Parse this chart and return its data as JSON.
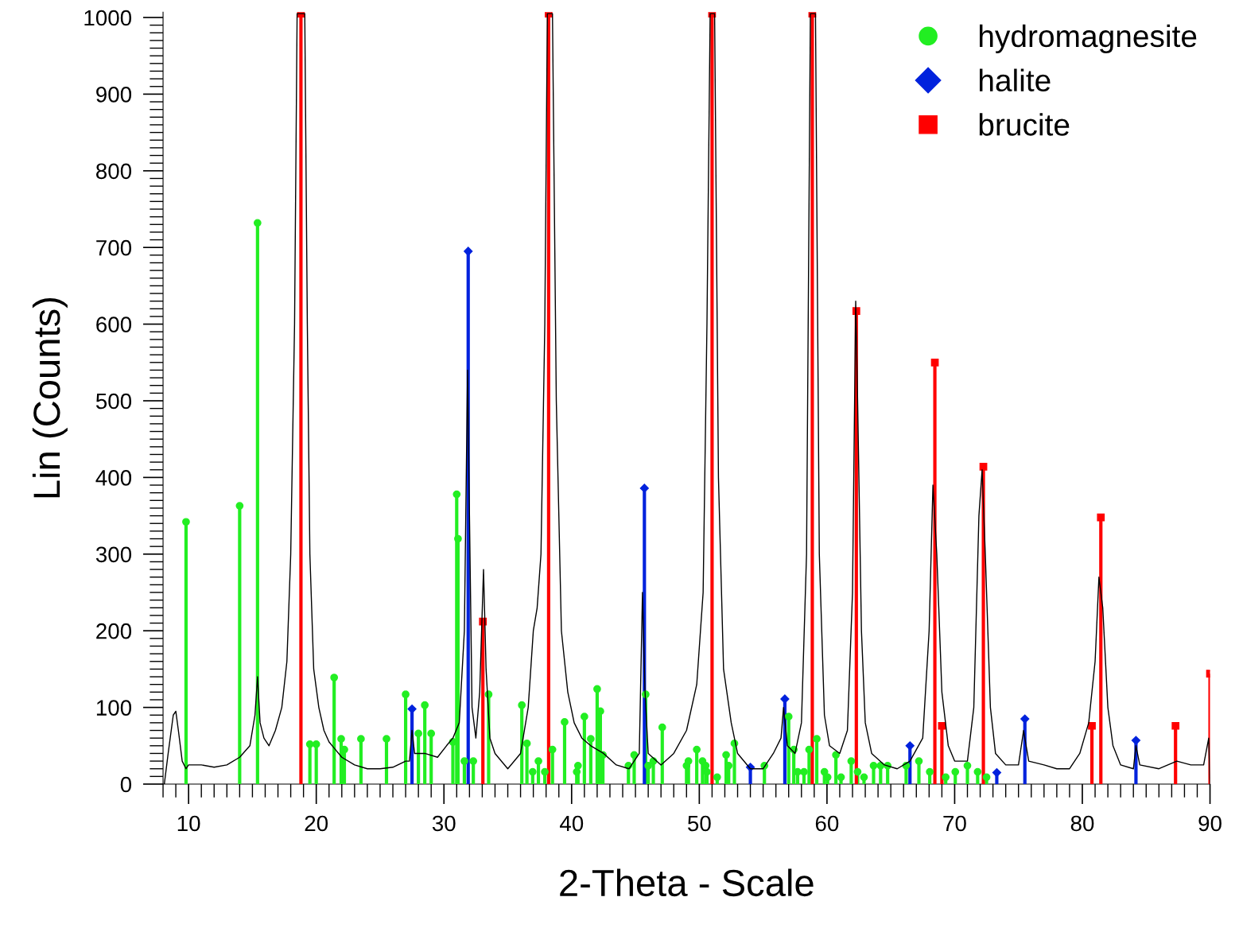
{
  "chart_data": {
    "type": "line",
    "xlabel": "2-Theta - Scale",
    "ylabel": "Lin (Counts)",
    "xlim": [
      8,
      90
    ],
    "xticks": [
      10,
      20,
      30,
      40,
      50,
      60,
      70,
      80,
      90
    ],
    "ylim": [
      0,
      1007
    ],
    "yticks": [
      0,
      100,
      200,
      300,
      400,
      500,
      600,
      700,
      800,
      900,
      1000
    ],
    "grid": false,
    "legend": "top right",
    "series": [
      {
        "color": "#000000",
        "marker": "none",
        "x": [
          8.1,
          8.4,
          8.8,
          9.0,
          9.2,
          9.5,
          9.8,
          10,
          11,
          12,
          13,
          14,
          14.8,
          15.2,
          15.4,
          15.6,
          15.9,
          16.3,
          16.8,
          17.3,
          17.7,
          18.0,
          18.3,
          18.5,
          19.1,
          19.3,
          19.5,
          19.8,
          20.2,
          20.6,
          21,
          21.5,
          22,
          23,
          24,
          25,
          26,
          27,
          27.3,
          27.5,
          27.7,
          28.5,
          29.5,
          30.2,
          30.7,
          31.2,
          31.6,
          31.85,
          32.0,
          32.2,
          32.5,
          32.8,
          33.1,
          33.3,
          33.6,
          34,
          35,
          36,
          36.6,
          37.0,
          37.3,
          37.6,
          37.9,
          38.1,
          38.5,
          38.8,
          39.2,
          39.7,
          40.2,
          40.8,
          41.5,
          42.5,
          43.5,
          44.5,
          45.3,
          45.55,
          45.75,
          46,
          47,
          48,
          49,
          49.8,
          50.3,
          50.6,
          50.85,
          51.2,
          51.5,
          51.9,
          52.5,
          53,
          54,
          55,
          55.8,
          56.4,
          56.6,
          56.9,
          57.5,
          58,
          58.4,
          58.7,
          59.1,
          59.4,
          59.8,
          60.2,
          61,
          61.6,
          62,
          62.25,
          62.4,
          62.7,
          63,
          63.5,
          64.5,
          65.5,
          66.5,
          67.5,
          68.0,
          68.3,
          68.6,
          69.0,
          69.5,
          70,
          71,
          71.5,
          71.9,
          72.15,
          72.4,
          72.8,
          73.2,
          74,
          75,
          75.4,
          75.8,
          77,
          78,
          79,
          79.8,
          80.5,
          81,
          81.3,
          81.6,
          82,
          82.4,
          83,
          84,
          84.2,
          84.5,
          86,
          87.4,
          88.5,
          89.5,
          89.9,
          90
        ],
        "values": [
          0,
          40,
          90,
          95,
          70,
          30,
          20,
          25,
          25,
          22,
          25,
          35,
          50,
          90,
          140,
          80,
          60,
          50,
          70,
          100,
          160,
          300,
          600,
          1005,
          1005,
          600,
          300,
          150,
          100,
          70,
          55,
          45,
          35,
          25,
          20,
          20,
          22,
          30,
          30,
          70,
          40,
          40,
          35,
          50,
          60,
          80,
          200,
          540,
          350,
          100,
          60,
          120,
          280,
          150,
          60,
          40,
          20,
          40,
          100,
          200,
          230,
          300,
          600,
          1005,
          1005,
          500,
          200,
          120,
          80,
          60,
          50,
          40,
          25,
          20,
          40,
          250,
          120,
          40,
          25,
          40,
          70,
          130,
          250,
          600,
          1005,
          1005,
          400,
          150,
          80,
          40,
          20,
          20,
          40,
          60,
          100,
          50,
          40,
          80,
          300,
          1005,
          1005,
          300,
          90,
          50,
          40,
          70,
          250,
          630,
          500,
          200,
          80,
          40,
          25,
          20,
          30,
          60,
          200,
          390,
          300,
          120,
          50,
          30,
          30,
          100,
          350,
          410,
          300,
          100,
          40,
          25,
          25,
          70,
          30,
          25,
          20,
          20,
          40,
          80,
          160,
          270,
          230,
          100,
          50,
          25,
          20,
          50,
          25,
          20,
          30,
          25,
          25,
          60,
          0
        ]
      },
      {
        "type": "lollipop",
        "name": "hydromagnesite",
        "color": "#22ee22",
        "marker": "circle",
        "x": [
          9.8,
          14.0,
          15.4,
          19.5,
          20.0,
          21.4,
          21.95,
          22.2,
          23.5,
          25.5,
          27.0,
          28.0,
          28.5,
          29.0,
          30.7,
          31.0,
          31.1,
          31.6,
          32.3,
          33.5,
          36.1,
          36.5,
          36.95,
          37.4,
          37.9,
          38.5,
          39.45,
          40.4,
          40.5,
          41.0,
          41.5,
          42.0,
          42.25,
          42.45,
          44.45,
          44.9,
          45.8,
          46.0,
          46.4,
          47.1,
          49.0,
          49.15,
          49.8,
          50.25,
          50.5,
          50.6,
          51.4,
          52.1,
          52.3,
          52.75,
          55.1,
          57.0,
          57.4,
          57.7,
          58.2,
          58.6,
          59.2,
          59.8,
          60.05,
          60.7,
          61.1,
          61.9,
          62.4,
          62.9,
          63.65,
          64.2,
          64.75,
          66.2,
          67.2,
          68.05,
          69.3,
          70.05,
          71.0,
          71.8,
          72.5
        ],
        "values": [
          342,
          363,
          732,
          52,
          52,
          139,
          59,
          45,
          59,
          59,
          117,
          66,
          103,
          66,
          55,
          378,
          320,
          30,
          30,
          117,
          103,
          53,
          16,
          30,
          16,
          45,
          81,
          16,
          24,
          88,
          59,
          124,
          95,
          38,
          24,
          38,
          117,
          24,
          30,
          74,
          24,
          30,
          45,
          30,
          24,
          16,
          9,
          38,
          24,
          53,
          24,
          88,
          45,
          16,
          16,
          45,
          59,
          16,
          9,
          38,
          9,
          30,
          16,
          9,
          24,
          24,
          24,
          24,
          30,
          16,
          9,
          16,
          24,
          16,
          9
        ]
      },
      {
        "type": "lollipop",
        "name": "halite",
        "color": "#0022dd",
        "marker": "diamond",
        "x": [
          27.5,
          31.9,
          45.7,
          54.0,
          56.7,
          66.5,
          73.3,
          75.5,
          84.2
        ],
        "values": [
          98,
          695,
          386,
          22,
          111,
          50,
          15,
          85,
          57
        ]
      },
      {
        "type": "lollipop",
        "name": "brucite",
        "color": "#ff0000",
        "marker": "square",
        "x": [
          18.8,
          33.05,
          38.2,
          51.0,
          58.85,
          62.3,
          68.45,
          69.0,
          72.25,
          80.75,
          81.45,
          87.3,
          90.0
        ],
        "values": [
          1005,
          212,
          1005,
          1005,
          1005,
          617,
          550,
          76,
          414,
          76,
          348,
          76,
          144
        ]
      }
    ]
  }
}
